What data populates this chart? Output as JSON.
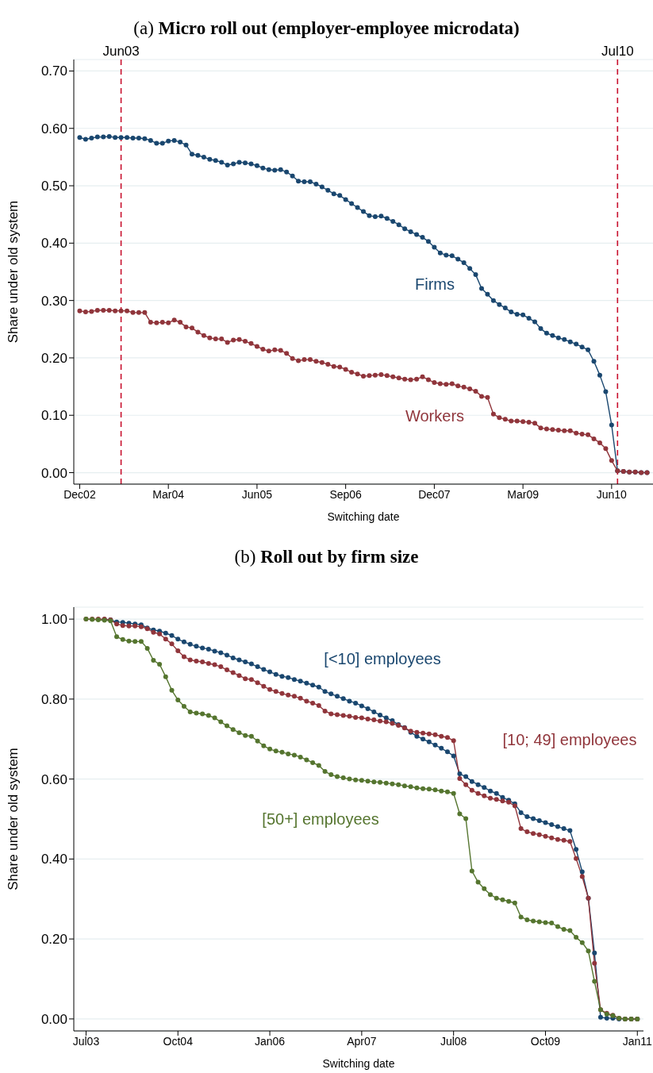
{
  "chart_data": [
    {
      "type": "line",
      "title": "(a) Micro roll out (employer-employee microdata)",
      "xlabel": "Switching date",
      "ylabel": "Share under old system",
      "grid": "y",
      "legend": false,
      "marker": "circle",
      "line_style": "solid",
      "x": [
        "2002-12",
        "2003-01",
        "2003-02",
        "2003-03",
        "2003-04",
        "2003-05",
        "2003-06",
        "2003-07",
        "2003-08",
        "2003-09",
        "2003-10",
        "2003-11",
        "2003-12",
        "2004-01",
        "2004-02",
        "2004-03",
        "2004-04",
        "2004-05",
        "2004-06",
        "2004-07",
        "2004-08",
        "2004-09",
        "2004-10",
        "2004-11",
        "2004-12",
        "2005-01",
        "2005-02",
        "2005-03",
        "2005-04",
        "2005-05",
        "2005-06",
        "2005-07",
        "2005-08",
        "2005-09",
        "2005-10",
        "2005-11",
        "2005-12",
        "2006-01",
        "2006-02",
        "2006-03",
        "2006-04",
        "2006-05",
        "2006-06",
        "2006-07",
        "2006-08",
        "2006-09",
        "2006-10",
        "2006-11",
        "2006-12",
        "2007-01",
        "2007-02",
        "2007-03",
        "2007-04",
        "2007-05",
        "2007-06",
        "2007-07",
        "2007-08",
        "2007-09",
        "2007-10",
        "2007-11",
        "2007-12",
        "2008-01",
        "2008-02",
        "2008-03",
        "2008-04",
        "2008-05",
        "2008-06",
        "2008-07",
        "2008-08",
        "2008-09",
        "2008-10",
        "2008-11",
        "2008-12",
        "2009-01",
        "2009-02",
        "2009-03",
        "2009-04",
        "2009-05",
        "2009-06",
        "2009-07",
        "2009-08",
        "2009-09",
        "2009-10",
        "2009-11",
        "2009-12",
        "2010-01",
        "2010-02",
        "2010-03",
        "2010-04",
        "2010-05",
        "2010-06",
        "2010-07",
        "2010-08",
        "2010-09",
        "2010-10",
        "2010-11",
        "2010-12"
      ],
      "xlim": [
        "2002-11",
        "2011-01"
      ],
      "xticks": [
        {
          "value": "2002-12",
          "label": "Dec02"
        },
        {
          "value": "2004-03",
          "label": "Mar04"
        },
        {
          "value": "2005-06",
          "label": "Jun05"
        },
        {
          "value": "2006-09",
          "label": "Sep06"
        },
        {
          "value": "2007-12",
          "label": "Dec07"
        },
        {
          "value": "2009-03",
          "label": "Mar09"
        },
        {
          "value": "2010-06",
          "label": "Jun10"
        }
      ],
      "ylim": [
        -0.02,
        0.72
      ],
      "yticks": [
        {
          "value": 0,
          "label": "0.00"
        },
        {
          "value": 0.1,
          "label": "0.10"
        },
        {
          "value": 0.2,
          "label": "0.20"
        },
        {
          "value": 0.3,
          "label": "0.30"
        },
        {
          "value": 0.4,
          "label": "0.40"
        },
        {
          "value": 0.5,
          "label": "0.50"
        },
        {
          "value": 0.6,
          "label": "0.60"
        },
        {
          "value": 0.7,
          "label": "0.70"
        }
      ],
      "ref_lines": [
        {
          "axis": "x",
          "value": "2003-07",
          "label": "Jun03",
          "color": "#c8102e",
          "line_style": "dashed"
        },
        {
          "axis": "x",
          "value": "2010-07",
          "label": "Jul10",
          "color": "#c8102e",
          "line_style": "dashed"
        }
      ],
      "series": [
        {
          "name": "Firms",
          "color": "#1a476f",
          "values": [
            0.584,
            0.581,
            0.583,
            0.585,
            0.585,
            0.586,
            0.584,
            0.584,
            0.584,
            0.583,
            0.583,
            0.582,
            0.579,
            0.574,
            0.574,
            0.578,
            0.579,
            0.576,
            0.571,
            0.555,
            0.553,
            0.55,
            0.546,
            0.544,
            0.541,
            0.536,
            0.538,
            0.541,
            0.54,
            0.538,
            0.535,
            0.531,
            0.528,
            0.527,
            0.528,
            0.524,
            0.517,
            0.508,
            0.507,
            0.507,
            0.503,
            0.498,
            0.492,
            0.486,
            0.483,
            0.476,
            0.469,
            0.462,
            0.455,
            0.448,
            0.446,
            0.447,
            0.443,
            0.438,
            0.432,
            0.425,
            0.42,
            0.415,
            0.41,
            0.403,
            0.393,
            0.383,
            0.379,
            0.378,
            0.372,
            0.366,
            0.356,
            0.345,
            0.321,
            0.311,
            0.3,
            0.293,
            0.287,
            0.28,
            0.276,
            0.275,
            0.269,
            0.263,
            0.251,
            0.243,
            0.239,
            0.235,
            0.232,
            0.228,
            0.224,
            0.219,
            0.214,
            0.194,
            0.17,
            0.141,
            0.083,
            0.003,
            0.002,
            0.001,
            0.001,
            0.0,
            0.0
          ]
        },
        {
          "name": "Workers",
          "color": "#90353b",
          "values": [
            0.282,
            0.28,
            0.281,
            0.283,
            0.283,
            0.283,
            0.282,
            0.282,
            0.282,
            0.279,
            0.279,
            0.279,
            0.262,
            0.261,
            0.262,
            0.261,
            0.266,
            0.262,
            0.254,
            0.252,
            0.245,
            0.239,
            0.235,
            0.233,
            0.233,
            0.227,
            0.231,
            0.232,
            0.229,
            0.225,
            0.22,
            0.215,
            0.212,
            0.214,
            0.213,
            0.208,
            0.199,
            0.195,
            0.197,
            0.197,
            0.194,
            0.192,
            0.189,
            0.185,
            0.184,
            0.18,
            0.175,
            0.172,
            0.168,
            0.169,
            0.17,
            0.171,
            0.169,
            0.167,
            0.165,
            0.163,
            0.162,
            0.163,
            0.167,
            0.162,
            0.157,
            0.155,
            0.154,
            0.155,
            0.151,
            0.149,
            0.146,
            0.142,
            0.133,
            0.131,
            0.102,
            0.096,
            0.093,
            0.09,
            0.09,
            0.089,
            0.088,
            0.086,
            0.078,
            0.076,
            0.075,
            0.074,
            0.073,
            0.073,
            0.069,
            0.067,
            0.066,
            0.059,
            0.052,
            0.042,
            0.021,
            0.003,
            0.002,
            0.001,
            0.001,
            0.0,
            0.0
          ]
        }
      ]
    },
    {
      "type": "line",
      "title": "(b) Roll out by firm size",
      "xlabel": "Switching date",
      "ylabel": "Share under old system",
      "grid": "y",
      "legend": false,
      "marker": "circle",
      "line_style": "solid",
      "x": [
        "2003-07",
        "2003-08",
        "2003-09",
        "2003-10",
        "2003-11",
        "2003-12",
        "2004-01",
        "2004-02",
        "2004-03",
        "2004-04",
        "2004-05",
        "2004-06",
        "2004-07",
        "2004-08",
        "2004-09",
        "2004-10",
        "2004-11",
        "2004-12",
        "2005-01",
        "2005-02",
        "2005-03",
        "2005-04",
        "2005-05",
        "2005-06",
        "2005-07",
        "2005-08",
        "2005-09",
        "2005-10",
        "2005-11",
        "2005-12",
        "2006-01",
        "2006-02",
        "2006-03",
        "2006-04",
        "2006-05",
        "2006-06",
        "2006-07",
        "2006-08",
        "2006-09",
        "2006-10",
        "2006-11",
        "2006-12",
        "2007-01",
        "2007-02",
        "2007-03",
        "2007-04",
        "2007-05",
        "2007-06",
        "2007-07",
        "2007-08",
        "2007-09",
        "2007-10",
        "2007-11",
        "2007-12",
        "2008-01",
        "2008-02",
        "2008-03",
        "2008-04",
        "2008-05",
        "2008-06",
        "2008-07",
        "2008-08",
        "2008-09",
        "2008-10",
        "2008-11",
        "2008-12",
        "2009-01",
        "2009-02",
        "2009-03",
        "2009-04",
        "2009-05",
        "2009-06",
        "2009-07",
        "2009-08",
        "2009-09",
        "2009-10",
        "2009-11",
        "2009-12",
        "2010-01",
        "2010-02",
        "2010-03",
        "2010-04",
        "2010-05",
        "2010-06",
        "2010-07",
        "2010-08",
        "2010-09",
        "2010-10",
        "2010-11",
        "2010-12",
        "2011-01"
      ],
      "xlim": [
        "2003-05",
        "2011-02"
      ],
      "xticks": [
        {
          "value": "2003-07",
          "label": "Jul03"
        },
        {
          "value": "2004-10",
          "label": "Oct04"
        },
        {
          "value": "2006-01",
          "label": "Jan06"
        },
        {
          "value": "2007-04",
          "label": "Apr07"
        },
        {
          "value": "2008-07",
          "label": "Jul08"
        },
        {
          "value": "2009-10",
          "label": "Oct09"
        },
        {
          "value": "2011-01",
          "label": "Jan11"
        }
      ],
      "ylim": [
        -0.03,
        1.03
      ],
      "yticks": [
        {
          "value": 0,
          "label": "0.00"
        },
        {
          "value": 0.2,
          "label": "0.20"
        },
        {
          "value": 0.4,
          "label": "0.40"
        },
        {
          "value": 0.6,
          "label": "0.60"
        },
        {
          "value": 0.8,
          "label": "0.80"
        },
        {
          "value": 1,
          "label": "1.00"
        }
      ],
      "series": [
        {
          "name": "[<10] employees",
          "color": "#1a476f",
          "values": [
            null,
            null,
            null,
            0.999,
            0.998,
            0.993,
            0.992,
            0.99,
            0.988,
            0.986,
            0.978,
            0.973,
            0.97,
            0.965,
            0.959,
            0.95,
            0.943,
            0.937,
            0.932,
            0.928,
            0.925,
            0.92,
            0.916,
            0.91,
            0.903,
            0.898,
            0.893,
            0.888,
            0.881,
            0.874,
            0.868,
            0.862,
            0.857,
            0.854,
            0.849,
            0.845,
            0.84,
            0.835,
            0.83,
            0.819,
            0.813,
            0.807,
            0.801,
            0.795,
            0.79,
            0.783,
            0.776,
            0.768,
            0.76,
            0.753,
            0.746,
            0.736,
            0.729,
            0.717,
            0.707,
            0.7,
            0.693,
            0.685,
            0.677,
            0.668,
            0.658,
            0.613,
            0.606,
            0.594,
            0.586,
            0.579,
            0.57,
            0.564,
            0.554,
            0.547,
            0.538,
            0.516,
            0.506,
            0.501,
            0.496,
            0.491,
            0.486,
            0.481,
            0.476,
            0.471,
            0.424,
            0.368,
            0.302,
            0.165,
            0.004,
            0.002,
            0.002,
            0.0,
            0.0,
            0.0,
            0.0
          ]
        },
        {
          "name": "[10; 49] employees",
          "color": "#90353b",
          "values": [
            1.0,
            1.0,
            1.0,
            1.0,
            0.998,
            0.988,
            0.984,
            0.983,
            0.983,
            0.981,
            0.976,
            0.967,
            0.963,
            0.95,
            0.938,
            0.921,
            0.906,
            0.898,
            0.895,
            0.893,
            0.889,
            0.886,
            0.881,
            0.873,
            0.866,
            0.859,
            0.851,
            0.849,
            0.841,
            0.832,
            0.824,
            0.819,
            0.814,
            0.81,
            0.807,
            0.802,
            0.795,
            0.79,
            0.784,
            0.77,
            0.763,
            0.761,
            0.759,
            0.757,
            0.754,
            0.753,
            0.75,
            0.748,
            0.745,
            0.743,
            0.739,
            0.734,
            0.728,
            0.72,
            0.717,
            0.715,
            0.713,
            0.711,
            0.707,
            0.704,
            0.696,
            0.601,
            0.586,
            0.572,
            0.564,
            0.558,
            0.552,
            0.549,
            0.545,
            0.542,
            0.533,
            0.476,
            0.468,
            0.464,
            0.461,
            0.457,
            0.453,
            0.449,
            0.447,
            0.444,
            0.401,
            0.356,
            0.302,
            0.139,
            0.023,
            0.014,
            0.009,
            0.002,
            0.0,
            0.0,
            0.0
          ]
        },
        {
          "name": "[50+] employees",
          "color": "#55752f",
          "values": [
            1.0,
            0.999,
            0.998,
            0.997,
            0.996,
            0.956,
            0.949,
            0.945,
            0.944,
            0.944,
            0.927,
            0.897,
            0.887,
            0.856,
            0.822,
            0.798,
            0.782,
            0.768,
            0.765,
            0.763,
            0.759,
            0.753,
            0.743,
            0.733,
            0.724,
            0.716,
            0.709,
            0.707,
            0.695,
            0.683,
            0.675,
            0.67,
            0.667,
            0.663,
            0.66,
            0.655,
            0.648,
            0.641,
            0.634,
            0.619,
            0.611,
            0.606,
            0.603,
            0.6,
            0.598,
            0.597,
            0.595,
            0.593,
            0.592,
            0.59,
            0.588,
            0.586,
            0.583,
            0.581,
            0.578,
            0.576,
            0.575,
            0.573,
            0.57,
            0.568,
            0.564,
            0.513,
            0.501,
            0.37,
            0.342,
            0.326,
            0.311,
            0.302,
            0.298,
            0.294,
            0.29,
            0.255,
            0.248,
            0.245,
            0.243,
            0.241,
            0.24,
            0.231,
            0.224,
            0.221,
            0.204,
            0.191,
            0.17,
            0.094,
            0.023,
            0.012,
            0.008,
            0.002,
            0.0,
            0.0,
            0.0
          ]
        }
      ]
    }
  ]
}
